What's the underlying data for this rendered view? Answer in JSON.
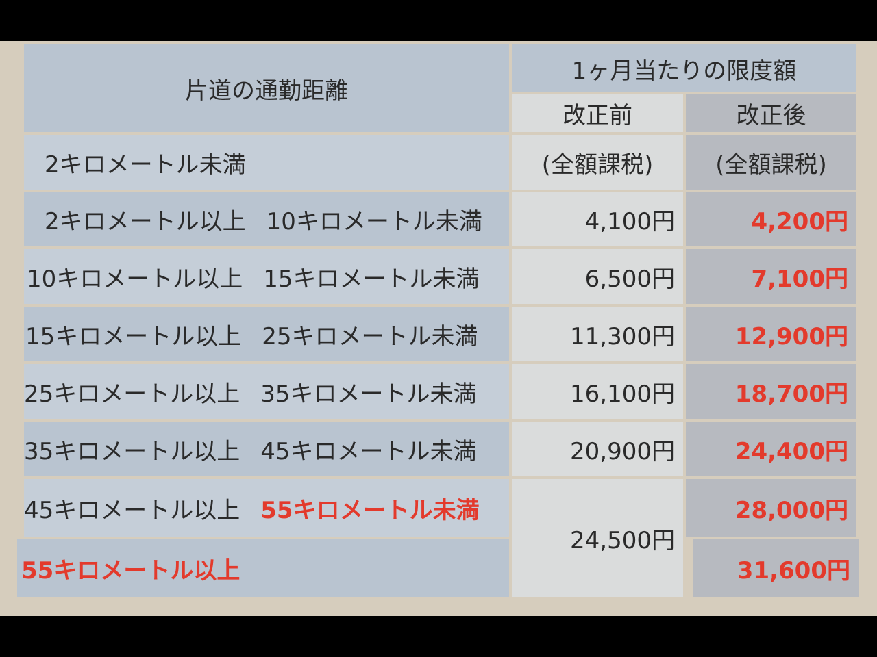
{
  "header": {
    "distance": "片道の通勤距離",
    "limit": "1ヶ月当たりの限度額",
    "before": "改正前",
    "after": "改正後"
  },
  "rows": [
    {
      "from": "2キロメートル未満",
      "to": "",
      "before": "(全額課税)",
      "after": "(全額課税)"
    },
    {
      "from": "2キロメートル以上",
      "to": "10キロメートル未満",
      "before": "4,100円",
      "after": "4,200円"
    },
    {
      "from": "10キロメートル以上",
      "to": "15キロメートル未満",
      "before": "6,500円",
      "after": "7,100円"
    },
    {
      "from": "15キロメートル以上",
      "to": "25キロメートル未満",
      "before": "11,300円",
      "after": "12,900円"
    },
    {
      "from": "25キロメートル以上",
      "to": "35キロメートル未満",
      "before": "16,100円",
      "after": "18,700円"
    },
    {
      "from": "35キロメートル以上",
      "to": "45キロメートル未満",
      "before": "20,900円",
      "after": "24,400円"
    },
    {
      "from": "45キロメートル以上",
      "to": "55キロメートル未満",
      "before": "24,500円",
      "after": "28,000円"
    },
    {
      "from": "55キロメートル以上",
      "to": "",
      "before": "",
      "after": "31,600円"
    }
  ],
  "colors": {
    "highlight": "#e33a2c"
  }
}
